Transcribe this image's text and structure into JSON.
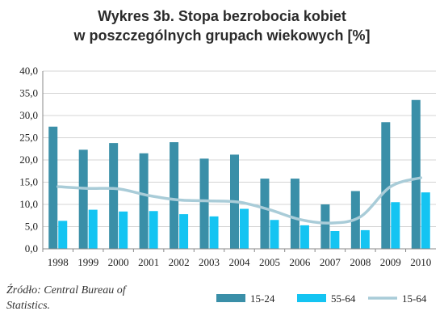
{
  "chart_data": {
    "type": "bar",
    "title_line1": "Wykres 3b. Stopa bezrobocia kobiet",
    "title_line2": "w poszczególnych grupach wiekowych [%]",
    "categories": [
      "1998",
      "1999",
      "2000",
      "2001",
      "2002",
      "2003",
      "2004",
      "2005",
      "2006",
      "2007",
      "2008",
      "2009",
      "2010"
    ],
    "series": [
      {
        "name": "15-24",
        "kind": "bar",
        "color": "#3a8fa8",
        "values": [
          27.5,
          22.3,
          23.8,
          21.5,
          24.0,
          20.3,
          21.2,
          15.8,
          15.8,
          10.0,
          13.0,
          28.5,
          33.5
        ]
      },
      {
        "name": "55-64",
        "kind": "bar",
        "color": "#14c4f2",
        "values": [
          6.3,
          8.8,
          8.4,
          8.5,
          7.8,
          7.3,
          9.0,
          6.5,
          5.3,
          4.0,
          4.2,
          10.5,
          12.7
        ]
      },
      {
        "name": "15-64",
        "kind": "line",
        "color": "#a9ccd8",
        "values": [
          14.0,
          13.6,
          13.5,
          12.0,
          11.0,
          10.8,
          10.5,
          8.8,
          6.6,
          5.8,
          7.2,
          14.0,
          16.0
        ]
      }
    ],
    "ylim": [
      0,
      40
    ],
    "yticks": [
      "0,0",
      "5,0",
      "10,0",
      "15,0",
      "20,0",
      "25,0",
      "30,0",
      "35,0",
      "40,0"
    ],
    "grid": true,
    "legend_position": "bottom-right"
  },
  "source_line1": "Źródło: Central Bureau of",
  "source_line2": "Statistics."
}
